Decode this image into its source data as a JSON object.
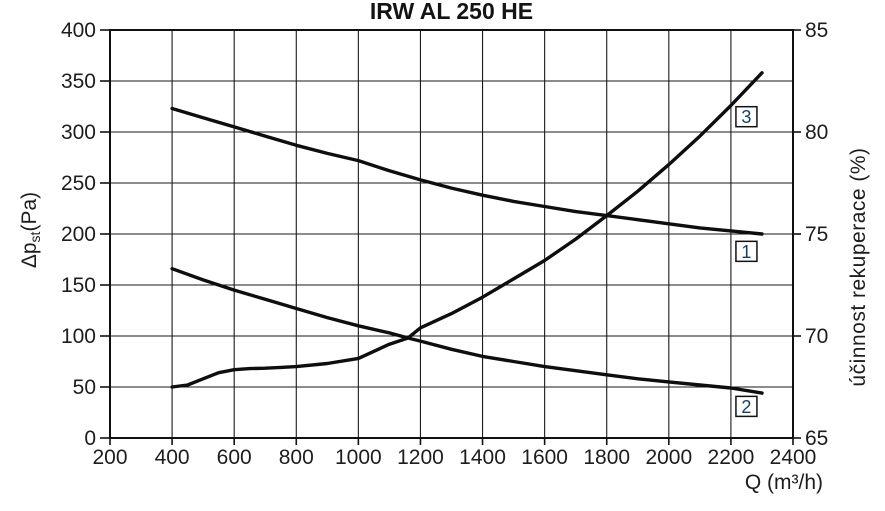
{
  "title": "IRW AL 250 HE",
  "chart_data": {
    "type": "line",
    "title": "IRW AL 250 HE",
    "grid": true,
    "legend_position": "none",
    "x_axis": {
      "label": "Q (m³/h)",
      "min": 200,
      "max": 2400,
      "ticks": [
        200,
        400,
        600,
        800,
        1000,
        1200,
        1400,
        1600,
        1800,
        2000,
        2200,
        2400
      ]
    },
    "y_left_axis": {
      "label": "Δpst(Pa)",
      "label_parts": {
        "prefix": "Δp",
        "sub": "st",
        "suffix": "(Pa)"
      },
      "min": 0,
      "max": 400,
      "ticks": [
        400,
        350,
        300,
        250,
        200,
        150,
        100,
        50,
        0
      ]
    },
    "y_right_axis": {
      "label": "účinnost rekuperace (%)",
      "min": 65,
      "max": 85,
      "ticks": [
        85,
        80,
        75,
        70,
        65
      ]
    },
    "series": [
      {
        "name": "1",
        "axis": "left",
        "x": [
          400,
          500,
          600,
          700,
          800,
          900,
          1000,
          1100,
          1200,
          1300,
          1400,
          1500,
          1600,
          1700,
          1800,
          1900,
          2000,
          2100,
          2200,
          2300
        ],
        "y": [
          323,
          314,
          305,
          296,
          287,
          279,
          272,
          262,
          253,
          245,
          238,
          232,
          227,
          222,
          218,
          214,
          210,
          206,
          203,
          200
        ]
      },
      {
        "name": "2",
        "axis": "left",
        "x": [
          400,
          500,
          600,
          700,
          800,
          900,
          1000,
          1100,
          1160,
          1200,
          1300,
          1400,
          1500,
          1600,
          1700,
          1800,
          1900,
          2000,
          2100,
          2200,
          2300
        ],
        "y": [
          166,
          155,
          145,
          136,
          127,
          118,
          110,
          103,
          98,
          95,
          87,
          80,
          75,
          70,
          66,
          62,
          58,
          55,
          52,
          49,
          44
        ]
      },
      {
        "name": "3",
        "axis": "right",
        "x": [
          400,
          450,
          500,
          550,
          600,
          650,
          700,
          750,
          800,
          900,
          1000,
          1100,
          1160,
          1200,
          1300,
          1400,
          1500,
          1600,
          1700,
          1800,
          1900,
          2000,
          2100,
          2200,
          2300
        ],
        "y": [
          67.5,
          67.6,
          67.9,
          68.2,
          68.35,
          68.4,
          68.42,
          68.46,
          68.5,
          68.65,
          68.9,
          69.6,
          69.9,
          70.4,
          71.1,
          71.9,
          72.8,
          73.7,
          74.75,
          75.9,
          77.1,
          78.4,
          79.8,
          81.3,
          82.9
        ]
      }
    ],
    "curve_labels": [
      {
        "text": "3",
        "x": 2250,
        "axis": "right",
        "value": 80.75
      },
      {
        "text": "1",
        "x": 2250,
        "axis": "left",
        "value": 183
      },
      {
        "text": "2",
        "x": 2250,
        "axis": "left",
        "value": 31
      }
    ]
  },
  "colors": {
    "background": "#ffffff",
    "curve": "#0e0e0e",
    "grid": "#1a1a1a",
    "text": "#1d1d1d"
  }
}
